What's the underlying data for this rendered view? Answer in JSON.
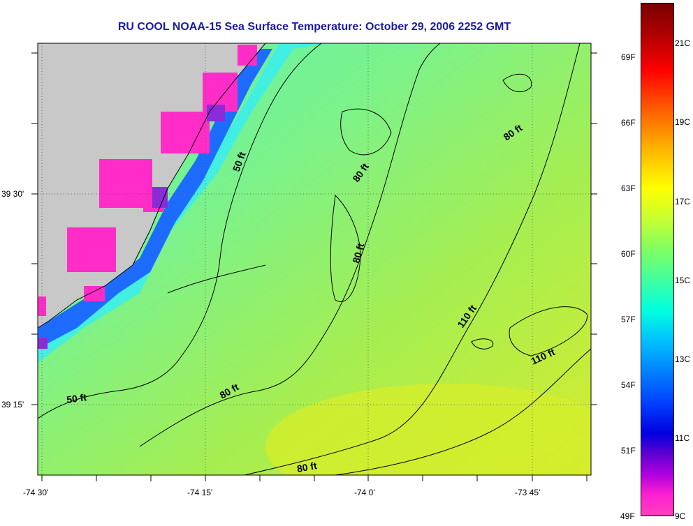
{
  "title": "RU COOL  NOAA-15  Sea Surface Temperature:  October 29, 2006 2252 GMT",
  "map": {
    "x_ticks": [
      "-74 30'",
      "-74 15'",
      "-74 0'",
      "-73 45'"
    ],
    "y_ticks": [
      "39 30'",
      "39 15'"
    ],
    "depth_contours": [
      {
        "label": "50 ft",
        "angle": -70
      },
      {
        "label": "80 ft",
        "angle": -55
      },
      {
        "label": "80 ft",
        "angle": -35
      },
      {
        "label": "80 ft",
        "angle": -75
      },
      {
        "label": "110 ft",
        "angle": -55
      },
      {
        "label": "110 ft",
        "angle": -25
      },
      {
        "label": "50 ft",
        "angle": -8
      },
      {
        "label": "80 ft",
        "angle": -30
      },
      {
        "label": "80 ft",
        "angle": -10
      }
    ],
    "colors": {
      "land": "#c8c8c8",
      "ocean_warm": "#b8e84a",
      "ocean_mid": "#66f29a",
      "nearshore": "#3aa8ff",
      "cold": "#1a2cff",
      "coldest": "#ff28c8"
    }
  },
  "colorbar": {
    "fahrenheit": [
      "69F",
      "66F",
      "63F",
      "60F",
      "57F",
      "54F",
      "51F",
      "49F"
    ],
    "celsius": [
      "21C",
      "19C",
      "17C",
      "15C",
      "13C",
      "11C",
      "9C"
    ]
  }
}
